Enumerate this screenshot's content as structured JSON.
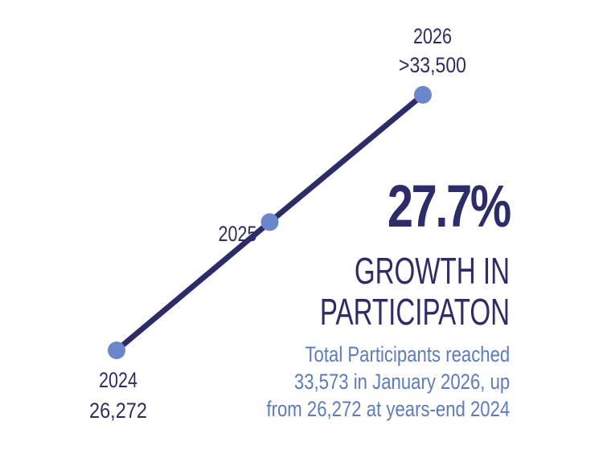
{
  "chart_data": {
    "type": "line",
    "title": "",
    "x": [
      "2024",
      "2025",
      "2026"
    ],
    "series": [
      {
        "values": [
          26272,
          29900,
          33500
        ]
      }
    ],
    "point_labels": [
      {
        "year": "2024",
        "value": "26,272"
      },
      {
        "year": "2025",
        "value": ""
      },
      {
        "year": "2026",
        "value": ">33,500"
      }
    ],
    "line_color": "#2d2c6b",
    "point_color": "#6a86cc",
    "grid": false,
    "axes_visible": false
  },
  "headline": {
    "percent": "27.7%",
    "line1": "GROWTH IN",
    "line2": "PARTICIPATON"
  },
  "description": {
    "line1": "Total Participants reached",
    "line2": "33,573 in January 2026, up",
    "line3": "from 26,272 at years-end 2024"
  }
}
